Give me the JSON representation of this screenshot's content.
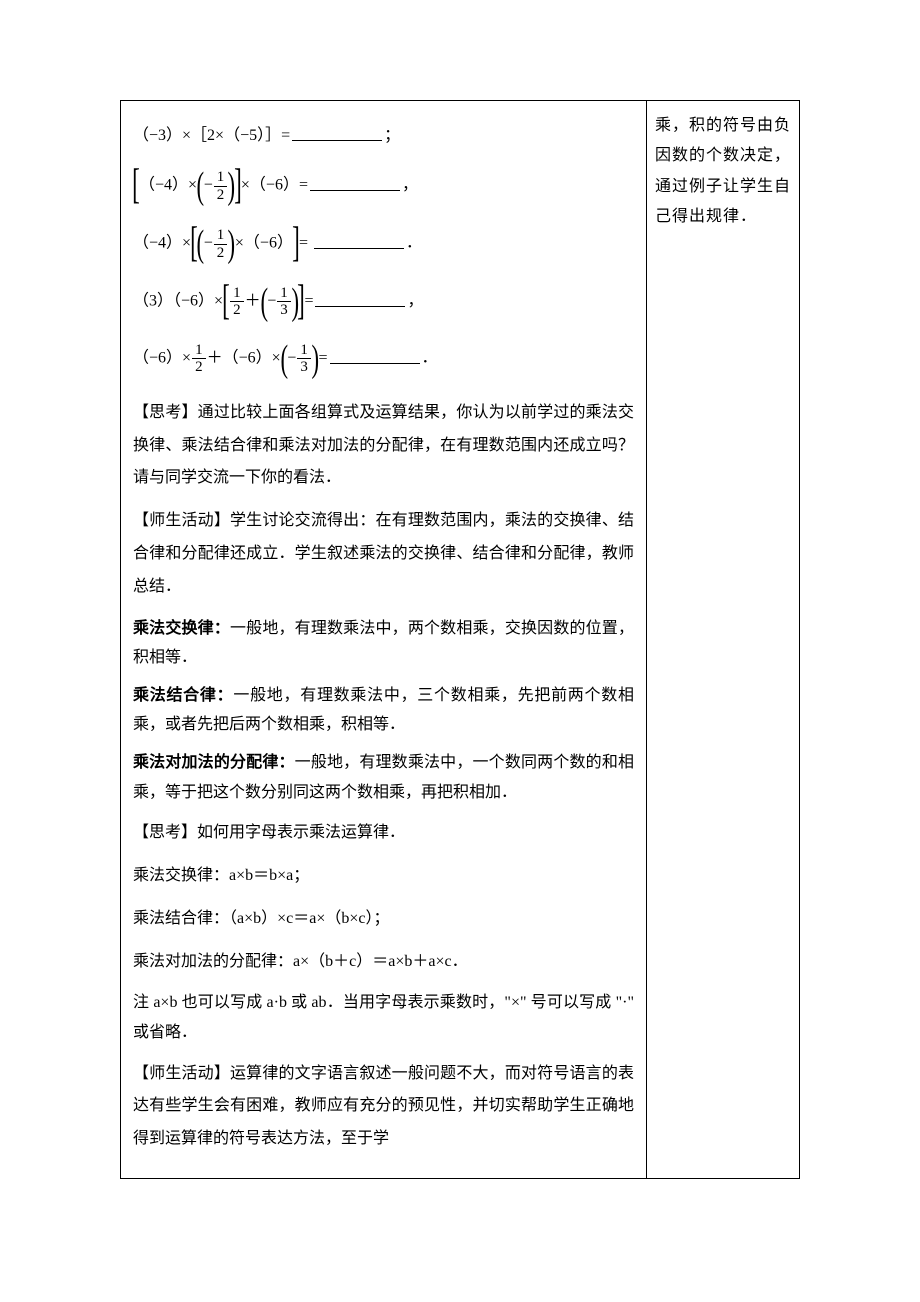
{
  "left": {
    "eq1": {
      "prefix": "（−3）×［2×（−5）］=",
      "punct": "；"
    },
    "eq2": {
      "pre": "（−4）×",
      "mid": "×（−6）=",
      "punct": "，",
      "frac_num": "1",
      "frac_den": "2",
      "neg": "−"
    },
    "eq3": {
      "pre": "（−4）×",
      "inner_times": "×（−6）",
      "eq": "=",
      "punct": "．",
      "frac_num": "1",
      "frac_den": "2",
      "neg": "−"
    },
    "eq4": {
      "label": "（3）",
      "pre": "（−6）×",
      "plus": "＋",
      "eq": "=",
      "punct": "，",
      "frac1_num": "1",
      "frac1_den": "2",
      "frac2_num": "1",
      "frac2_den": "3",
      "neg": "−"
    },
    "eq5": {
      "a": "（−6）×",
      "plus": "＋（−6）×",
      "eq": "=",
      "punct": "．",
      "frac1_num": "1",
      "frac1_den": "2",
      "frac2_num": "1",
      "frac2_den": "3",
      "neg": "−"
    },
    "think1": "【思考】通过比较上面各组算式及运算结果，你认为以前学过的乘法交换律、乘法结合律和乘法对加法的分配律，在有理数范围内还成立吗？请与同学交流一下你的看法．",
    "activity1": "【师生活动】学生讨论交流得出：在有理数范围内，乘法的交换律、结合律和分配律还成立．学生叙述乘法的交换律、结合律和分配律，教师总结．",
    "law1_title": "乘法交换律：",
    "law1_body": "一般地，有理数乘法中，两个数相乘，交换因数的位置，积相等．",
    "law2_title": "乘法结合律：",
    "law2_body": "一般地，有理数乘法中，三个数相乘，先把前两个数相乘，或者先把后两个数相乘，积相等．",
    "law3_title": "乘法对加法的分配律：",
    "law3_body": "一般地，有理数乘法中，一个数同两个数的和相乘，等于把这个数分别同这两个数相乘，再把积相加．",
    "think2": "【思考】如何用字母表示乘法运算律．",
    "letter1": "乘法交换律：a×b＝b×a；",
    "letter2": "乘法结合律：（a×b）×c＝a×（b×c）；",
    "letter3": "乘法对加法的分配律：a×（b＋c）＝a×b＋a×c．",
    "note": "注 a×b 也可以写成 a·b 或 ab．当用字母表示乘数时，\"×\" 号可以写成 \"·\" 或省略．",
    "activity2": "【师生活动】运算律的文字语言叙述一般问题不大，而对符号语言的表达有些学生会有困难，教师应有充分的预见性，并切实帮助学生正确地得到运算律的符号表达方法，至于学"
  },
  "right": {
    "text": "乘，积的符号由负因数的个数决定，通过例子让学生自己得出规律．"
  }
}
